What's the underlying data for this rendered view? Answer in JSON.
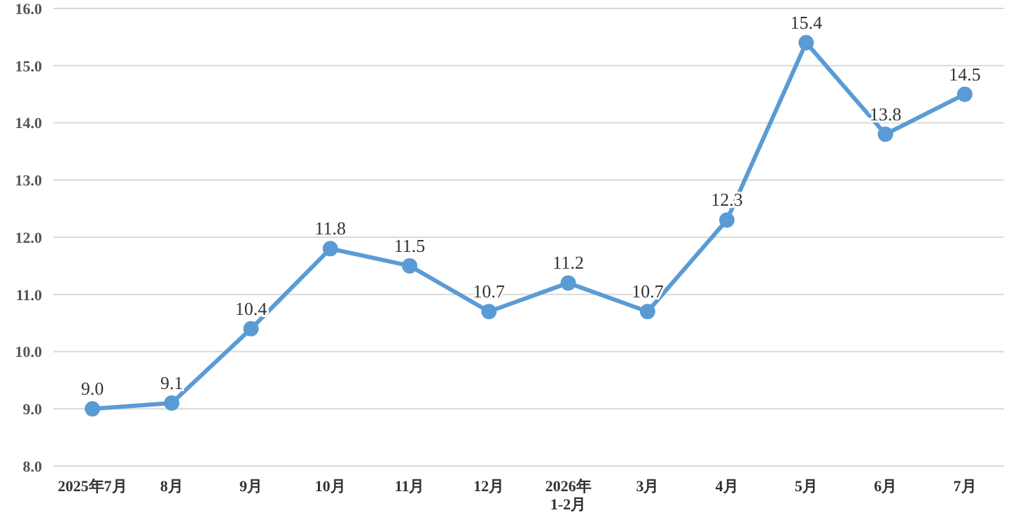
{
  "chart_data": {
    "type": "line",
    "categories": [
      "2025年7月",
      "8月",
      "9月",
      "10月",
      "11月",
      "12月",
      "2026年\n1-2月",
      "3月",
      "4月",
      "5月",
      "6月",
      "7月"
    ],
    "series": [
      {
        "color": "#5b9bd5",
        "values": [
          9.0,
          9.1,
          10.4,
          11.8,
          11.5,
          10.7,
          11.2,
          10.7,
          12.3,
          15.4,
          13.8,
          14.5
        ],
        "value_labels": [
          "9.0",
          "9.1",
          "10.4",
          "11.8",
          "11.5",
          "10.7",
          "11.2",
          "10.7",
          "12.3",
          "15.4",
          "13.8",
          "14.5"
        ]
      }
    ],
    "ylim": [
      8,
      16
    ],
    "yticks": [
      {
        "value": 8,
        "label": "8.0"
      },
      {
        "value": 9,
        "label": "9.0"
      },
      {
        "value": 10,
        "label": "10.0"
      },
      {
        "value": 11,
        "label": "11.0"
      },
      {
        "value": 12,
        "label": "12.0"
      },
      {
        "value": 13,
        "label": "13.0"
      },
      {
        "value": 14,
        "label": "14.0"
      },
      {
        "value": 15,
        "label": "15.0"
      },
      {
        "value": 16,
        "label": "16.0"
      }
    ],
    "grid": "y",
    "marker": "circle",
    "line_style": "solid",
    "legend": false
  }
}
